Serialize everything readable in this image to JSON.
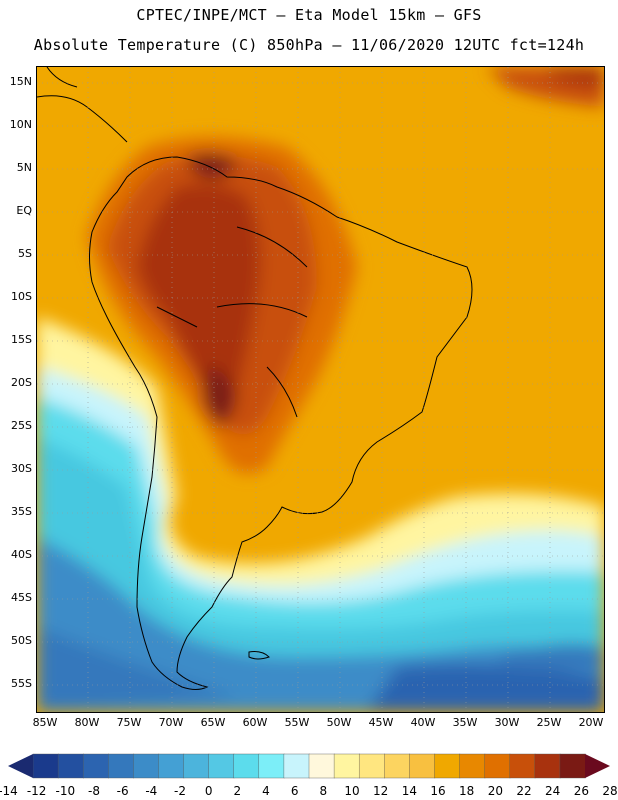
{
  "header": {
    "line1": "CPTEC/INPE/MCT –  Eta Model 15km – GFS",
    "line2": "Absolute Temperature (C) 850hPa – 11/06/2020 12UTC fct=124h"
  },
  "map": {
    "lat_labels": [
      "15N",
      "10N",
      "5N",
      "EQ",
      "5S",
      "10S",
      "15S",
      "20S",
      "25S",
      "30S",
      "35S",
      "40S",
      "45S",
      "50S",
      "55S"
    ],
    "lon_labels": [
      "85W",
      "80W",
      "75W",
      "70W",
      "65W",
      "60W",
      "55W",
      "50W",
      "45W",
      "40W",
      "35W",
      "30W",
      "25W",
      "20W"
    ],
    "regions": [
      {
        "level": "18-20 C",
        "color": "#f0a800"
      },
      {
        "level": "20-22 C",
        "color": "#e07c00"
      },
      {
        "level": "22-24 C",
        "color": "#c8560a"
      },
      {
        "level": "24-26 C",
        "color": "#a83a14"
      },
      {
        "level": "26-28 C",
        "color": "#7a1a14"
      },
      {
        "level": "0-2 C",
        "color": "#46c8e0"
      },
      {
        "level": "4-6 C",
        "color": "#a8f0f8"
      },
      {
        "level": "8-10 C",
        "color": "#fff5a0"
      }
    ]
  },
  "colorbar": {
    "labels": [
      "-14",
      "-12",
      "-10",
      "-8",
      "-6",
      "-4",
      "-2",
      "0",
      "2",
      "4",
      "6",
      "8",
      "10",
      "12",
      "14",
      "16",
      "18",
      "20",
      "22",
      "24",
      "26",
      "28"
    ],
    "colors": [
      "#1a3a8c",
      "#2350a0",
      "#2c64b0",
      "#3478bc",
      "#3c8cc8",
      "#44a0d4",
      "#4cb4dc",
      "#54c8e4",
      "#5cdcec",
      "#7ceef8",
      "#c8f4fc",
      "#fff8dc",
      "#fff5a0",
      "#ffe680",
      "#fcd460",
      "#f8c040",
      "#f0a800",
      "#e88800",
      "#e07000",
      "#c8500a",
      "#a8320e",
      "#7a1a14"
    ],
    "left_arrow_color": "#1a2a70",
    "right_arrow_color": "#6a0a1e"
  }
}
